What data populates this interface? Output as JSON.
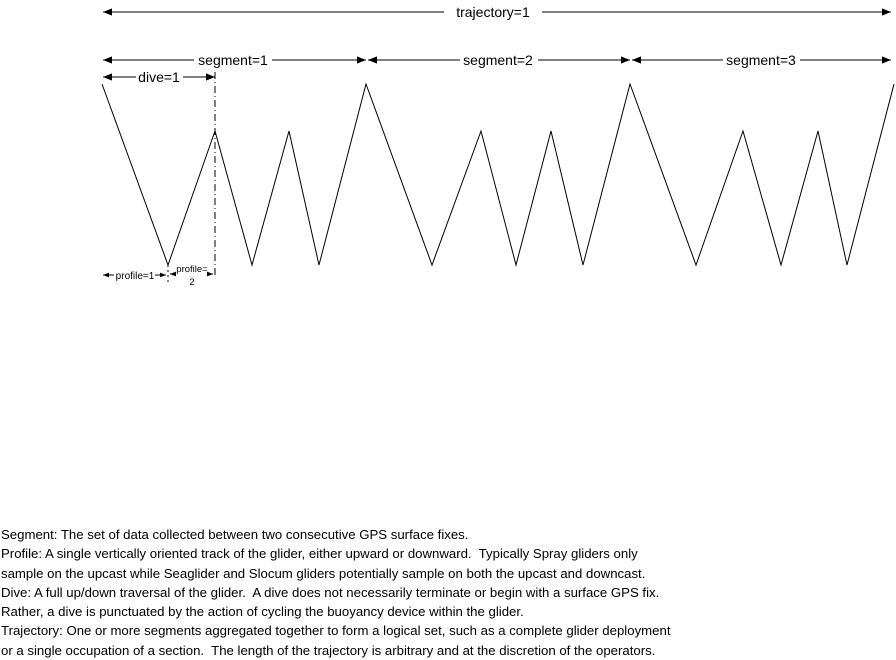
{
  "diagram": {
    "labels": {
      "trajectory": "trajectory=1",
      "segment1": "segment=1",
      "segment2": "segment=2",
      "segment3": "segment=3",
      "dive": "dive=1",
      "profile1": "profile=1",
      "profile2_line1": "profile=",
      "profile2_line2": "2"
    }
  },
  "definitions": [
    "Segment: The set of data collected between two consecutive GPS surface fixes.",
    "Profile: A single vertically oriented track of the glider, either upward or downward.  Typically Spray gliders only",
    "sample on the upcast while Seaglider and Slocum gliders potentially sample on both the upcast and downcast.",
    "Dive: A full up/down traversal of the glider.  A dive does not necessarily terminate or begin with a surface GPS fix.",
    "Rather, a dive is punctuated by the action of cycling the buoyancy device within the glider.",
    "Trajectory: One or more segments aggregated together to form a logical set, such as a complete glider deployment",
    "or a single occupation of a section.  The length of the trajectory is arbitrary and at the discretion of the operators."
  ]
}
